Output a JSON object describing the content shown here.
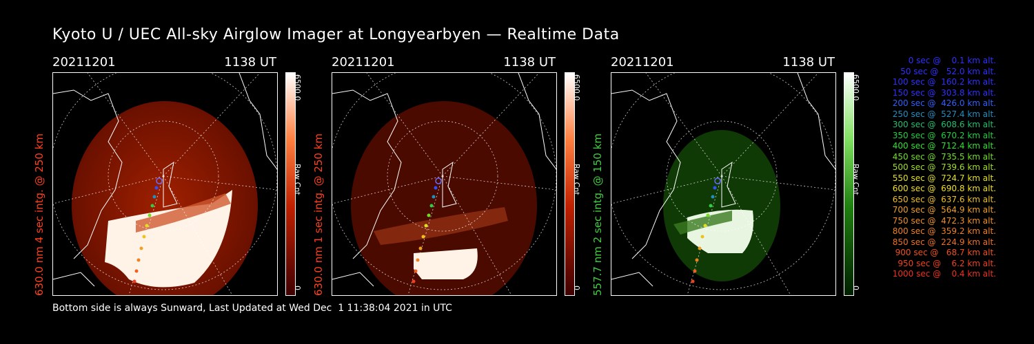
{
  "title": "Kyoto U / UEC All-sky Airglow Imager at Longyearbyen — Realtime Data",
  "footer": "Bottom side is always Sunward, Last Updated at Wed Dec  1 11:38:04 2021 in UTC",
  "panels": [
    {
      "date": "20211201",
      "time": "1138 UT",
      "side_label": "630.0 nm 4 sec intg. @ 250 km",
      "cbar_max": "6500.0",
      "cbar_unit": "Raw Cnt",
      "cbar_min": "0",
      "color": "#ff4020",
      "intensity": "bright"
    },
    {
      "date": "20211201",
      "time": "1138 UT",
      "side_label": "630.0 nm 1 sec intg. @ 250 km",
      "cbar_max": "6500.0",
      "cbar_unit": "Raw Cnt",
      "cbar_min": "0",
      "color": "#ff4020",
      "intensity": "medium"
    },
    {
      "date": "20211201",
      "time": "1138 UT",
      "side_label": "557.7 nm 2 sec intg. @ 150 km",
      "cbar_max": "6500.0",
      "cbar_unit": "Raw Cnt",
      "cbar_min": "0",
      "color": "#40d040",
      "intensity": "green"
    }
  ],
  "legend": [
    {
      "text": "0 sec @    0.1 km alt.",
      "color": "#3030ff"
    },
    {
      "text": "50 sec @   52.0 km alt.",
      "color": "#3030ff"
    },
    {
      "text": "100 sec @  160.2 km alt.",
      "color": "#3030ff"
    },
    {
      "text": "150 sec @  303.8 km alt.",
      "color": "#3030ff"
    },
    {
      "text": "200 sec @  426.0 km alt.",
      "color": "#3060ff"
    },
    {
      "text": "250 sec @  527.4 km alt.",
      "color": "#2090c0"
    },
    {
      "text": "300 sec @  608.6 km alt.",
      "color": "#20c070"
    },
    {
      "text": "350 sec @  670.2 km alt.",
      "color": "#20d040"
    },
    {
      "text": "400 sec @  712.4 km alt.",
      "color": "#30e030"
    },
    {
      "text": "450 sec @  735.5 km alt.",
      "color": "#70e020"
    },
    {
      "text": "500 sec @  739.6 km alt.",
      "color": "#a0e020"
    },
    {
      "text": "550 sec @  724.7 km alt.",
      "color": "#e0e020"
    },
    {
      "text": "600 sec @  690.8 km alt.",
      "color": "#f0e020"
    },
    {
      "text": "650 sec @  637.6 km alt.",
      "color": "#f0c020"
    },
    {
      "text": "700 sec @  564.9 km alt.",
      "color": "#f0a020"
    },
    {
      "text": "750 sec @  472.3 km alt.",
      "color": "#f09020"
    },
    {
      "text": "800 sec @  359.2 km alt.",
      "color": "#f08020"
    },
    {
      "text": "850 sec @  224.9 km alt.",
      "color": "#f07020"
    },
    {
      "text": "900 sec @   68.7 km alt.",
      "color": "#f05020"
    },
    {
      "text": "950 sec @    6.2 km alt.",
      "color": "#f04020"
    },
    {
      "text": "1000 sec @    0.4 km alt.",
      "color": "#f03020"
    }
  ]
}
